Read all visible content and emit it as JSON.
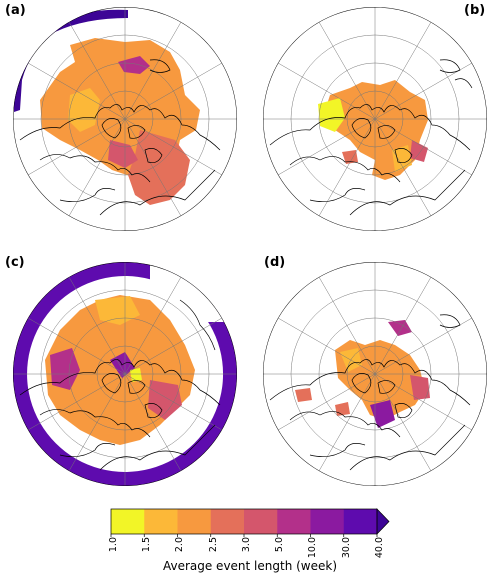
{
  "panels": [
    {
      "label": "(a)",
      "fill": "wide"
    },
    {
      "label": "(b)",
      "fill": "sparse"
    },
    {
      "label": "(c)",
      "fill": "wide"
    },
    {
      "label": "(d)",
      "fill": "sparse"
    }
  ],
  "colorbar": {
    "title": "Average event length (week)",
    "ticks": [
      "1.0",
      "1.5",
      "2.0",
      "2.5",
      "3.0",
      "5.0",
      "10.0",
      "30.0",
      "40.0"
    ],
    "colors": [
      "#f2f527",
      "#fcb838",
      "#f7993f",
      "#e4705a",
      "#d4566c",
      "#b3308a",
      "#8b1aa0",
      "#5e0bae",
      "#3d0596"
    ],
    "extend": "max"
  },
  "map": {
    "projection": "north-polar-stereographic",
    "grid_circles": 3,
    "meridians": 12,
    "coastline_color": "#000000",
    "gridline_color": "#777777"
  }
}
